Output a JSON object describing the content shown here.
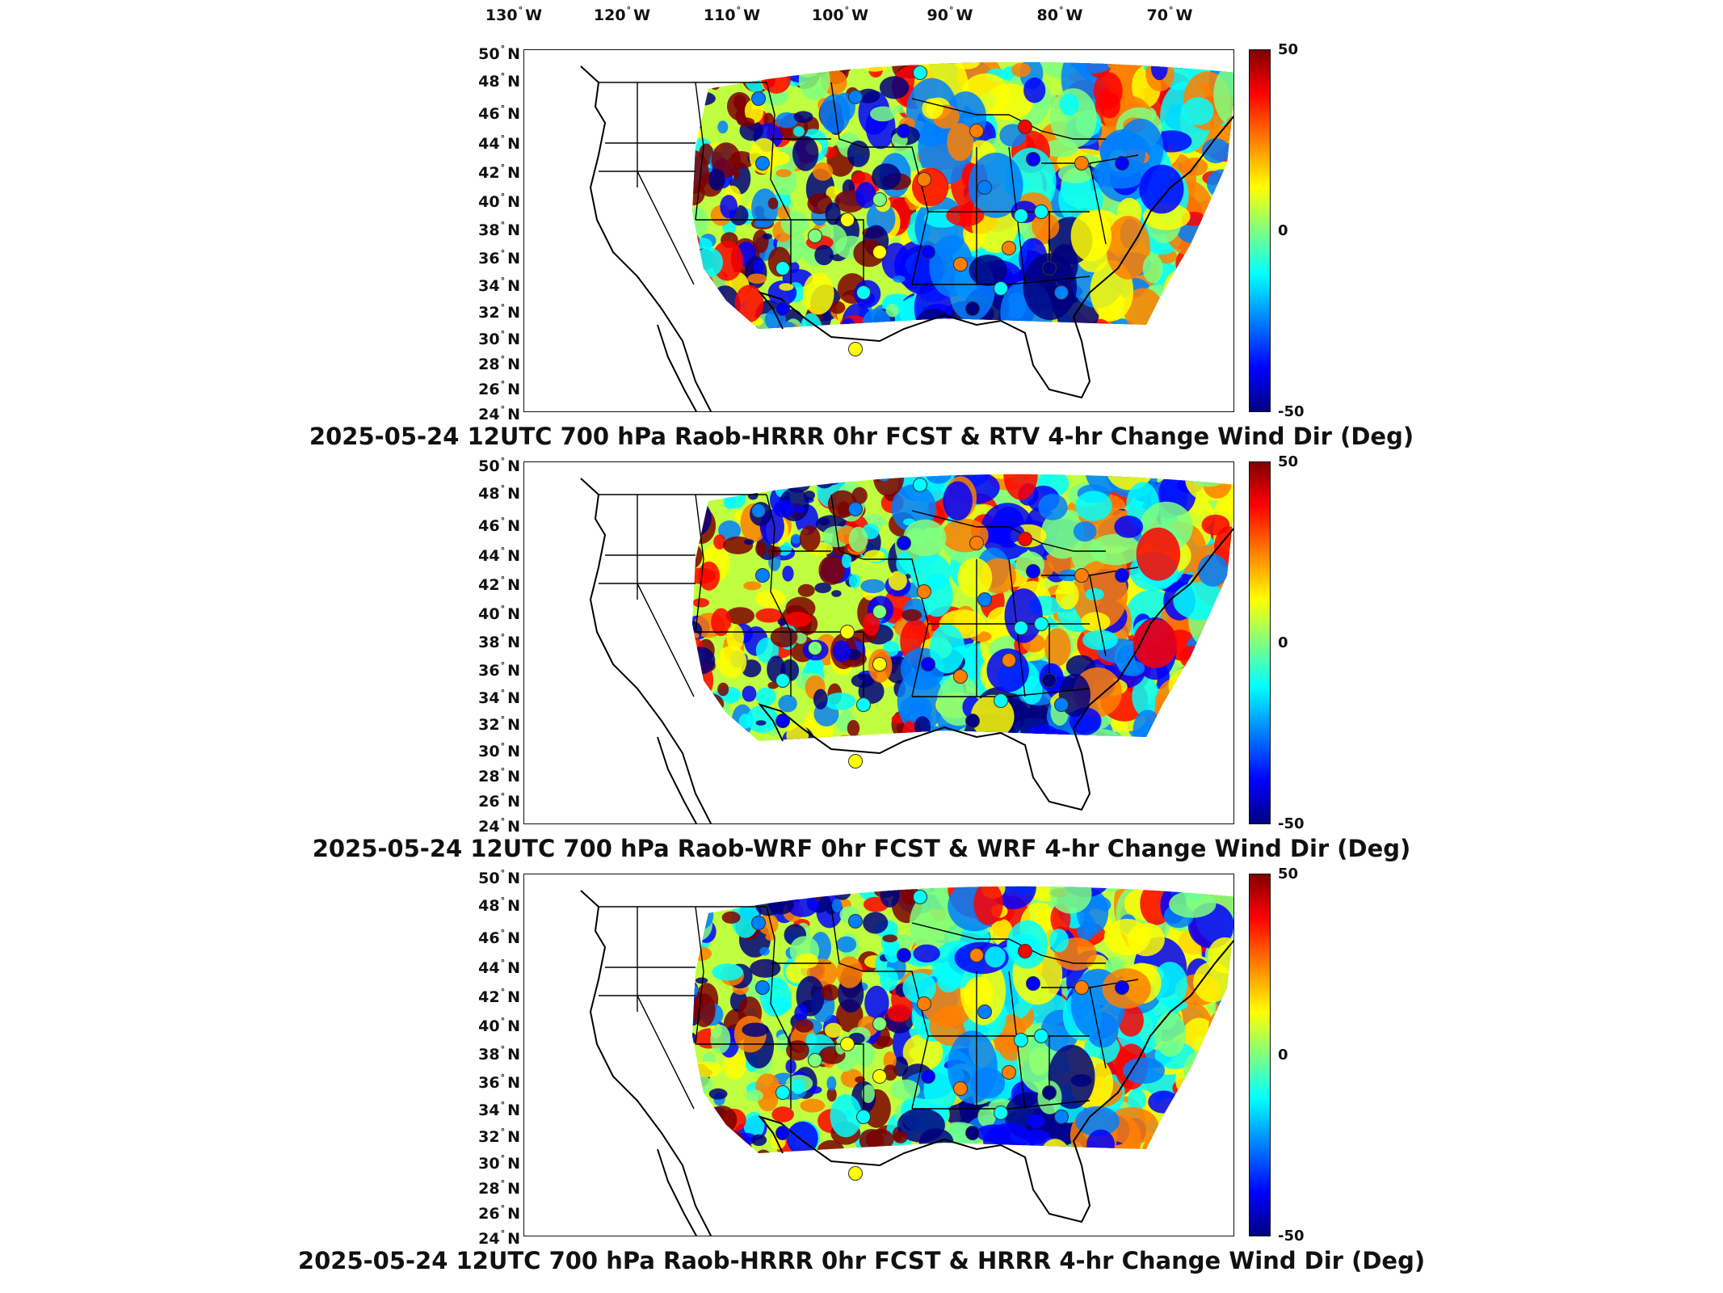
{
  "longitude_labels": [
    "130",
    "120",
    "110",
    "100",
    "90",
    "80",
    "70"
  ],
  "longitude_suffix": "W",
  "latitude_labels": [
    "50",
    "48",
    "46",
    "44",
    "42",
    "40",
    "38",
    "36",
    "34",
    "32",
    "30",
    "28",
    "26",
    "24"
  ],
  "latitude_suffix": "N",
  "degree_symbol": "°",
  "colorbar": {
    "max_label": "50",
    "mid_label": "0",
    "min_label": "-50",
    "min": -50,
    "max": 50,
    "colors": [
      "#7f0000",
      "#ff0000",
      "#ff7f00",
      "#ffff00",
      "#7fff7f",
      "#00ffff",
      "#007fff",
      "#0000ff",
      "#00007f"
    ]
  },
  "panels": [
    {
      "title": "2025-05-24 12UTC 700 hPa Raob-HRRR 0hr FCST & RTV 4-hr Change Wind Dir (Deg)"
    },
    {
      "title": "2025-05-24 12UTC 700 hPa Raob-WRF 0hr FCST & WRF 4-hr Change Wind Dir (Deg)"
    },
    {
      "title": "2025-05-24 12UTC 700 hPa Raob-HRRR 0hr FCST & HRRR 4-hr Change Wind Dir (Deg)"
    }
  ]
}
